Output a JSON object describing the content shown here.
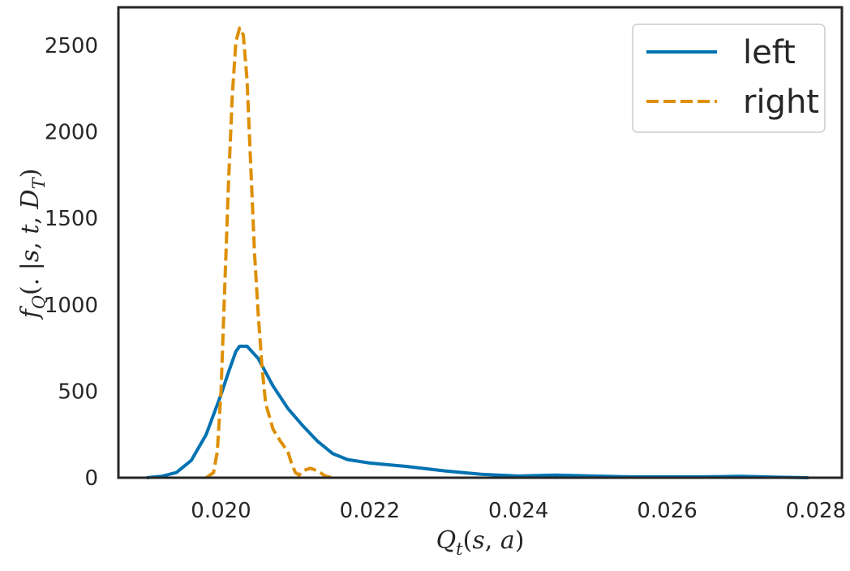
{
  "chart_data": {
    "type": "line",
    "xlabel": "Q_t(s,a)",
    "ylabel": "f_Q(.|s,t,D_T)",
    "xlim": [
      0.01862,
      0.02835
    ],
    "ylim": [
      0,
      2720
    ],
    "xticks": [
      0.02,
      0.022,
      0.024,
      0.026,
      0.028
    ],
    "xtick_labels": [
      "0.020",
      "0.022",
      "0.024",
      "0.026",
      "0.028"
    ],
    "yticks": [
      0,
      500,
      1000,
      1500,
      2000,
      2500
    ],
    "ytick_labels": [
      "0",
      "500",
      "1000",
      "1500",
      "2000",
      "2500"
    ],
    "grid": false,
    "legend_position": "top-right",
    "series": [
      {
        "name": "left",
        "color": "#0072b2",
        "style": "solid",
        "points": [
          [
            0.019,
            0
          ],
          [
            0.0192,
            8
          ],
          [
            0.0194,
            30
          ],
          [
            0.0196,
            100
          ],
          [
            0.0198,
            250
          ],
          [
            0.02,
            480
          ],
          [
            0.0201,
            610
          ],
          [
            0.0202,
            730
          ],
          [
            0.02025,
            760
          ],
          [
            0.02035,
            760
          ],
          [
            0.0205,
            690
          ],
          [
            0.0207,
            530
          ],
          [
            0.0209,
            400
          ],
          [
            0.0211,
            300
          ],
          [
            0.0213,
            210
          ],
          [
            0.0215,
            140
          ],
          [
            0.0217,
            105
          ],
          [
            0.022,
            85
          ],
          [
            0.0225,
            65
          ],
          [
            0.023,
            40
          ],
          [
            0.0235,
            20
          ],
          [
            0.024,
            10
          ],
          [
            0.0245,
            15
          ],
          [
            0.025,
            10
          ],
          [
            0.0255,
            5
          ],
          [
            0.026,
            5
          ],
          [
            0.0265,
            5
          ],
          [
            0.027,
            8
          ],
          [
            0.0275,
            3
          ],
          [
            0.0279,
            0
          ]
        ]
      },
      {
        "name": "right",
        "color": "#de8f05",
        "style": "dashed",
        "points": [
          [
            0.0198,
            0
          ],
          [
            0.0199,
            30
          ],
          [
            0.01995,
            150
          ],
          [
            0.02,
            500
          ],
          [
            0.02005,
            1100
          ],
          [
            0.0201,
            1700
          ],
          [
            0.02015,
            2200
          ],
          [
            0.0202,
            2520
          ],
          [
            0.02025,
            2600
          ],
          [
            0.0203,
            2560
          ],
          [
            0.02035,
            2300
          ],
          [
            0.0204,
            1800
          ],
          [
            0.02045,
            1300
          ],
          [
            0.0205,
            950
          ],
          [
            0.02055,
            650
          ],
          [
            0.0206,
            430
          ],
          [
            0.0207,
            280
          ],
          [
            0.0208,
            210
          ],
          [
            0.0209,
            150
          ],
          [
            0.02095,
            80
          ],
          [
            0.021,
            30
          ],
          [
            0.02105,
            15
          ],
          [
            0.0211,
            40
          ],
          [
            0.0212,
            55
          ],
          [
            0.0213,
            40
          ],
          [
            0.0214,
            10
          ],
          [
            0.0215,
            0
          ]
        ]
      }
    ]
  }
}
